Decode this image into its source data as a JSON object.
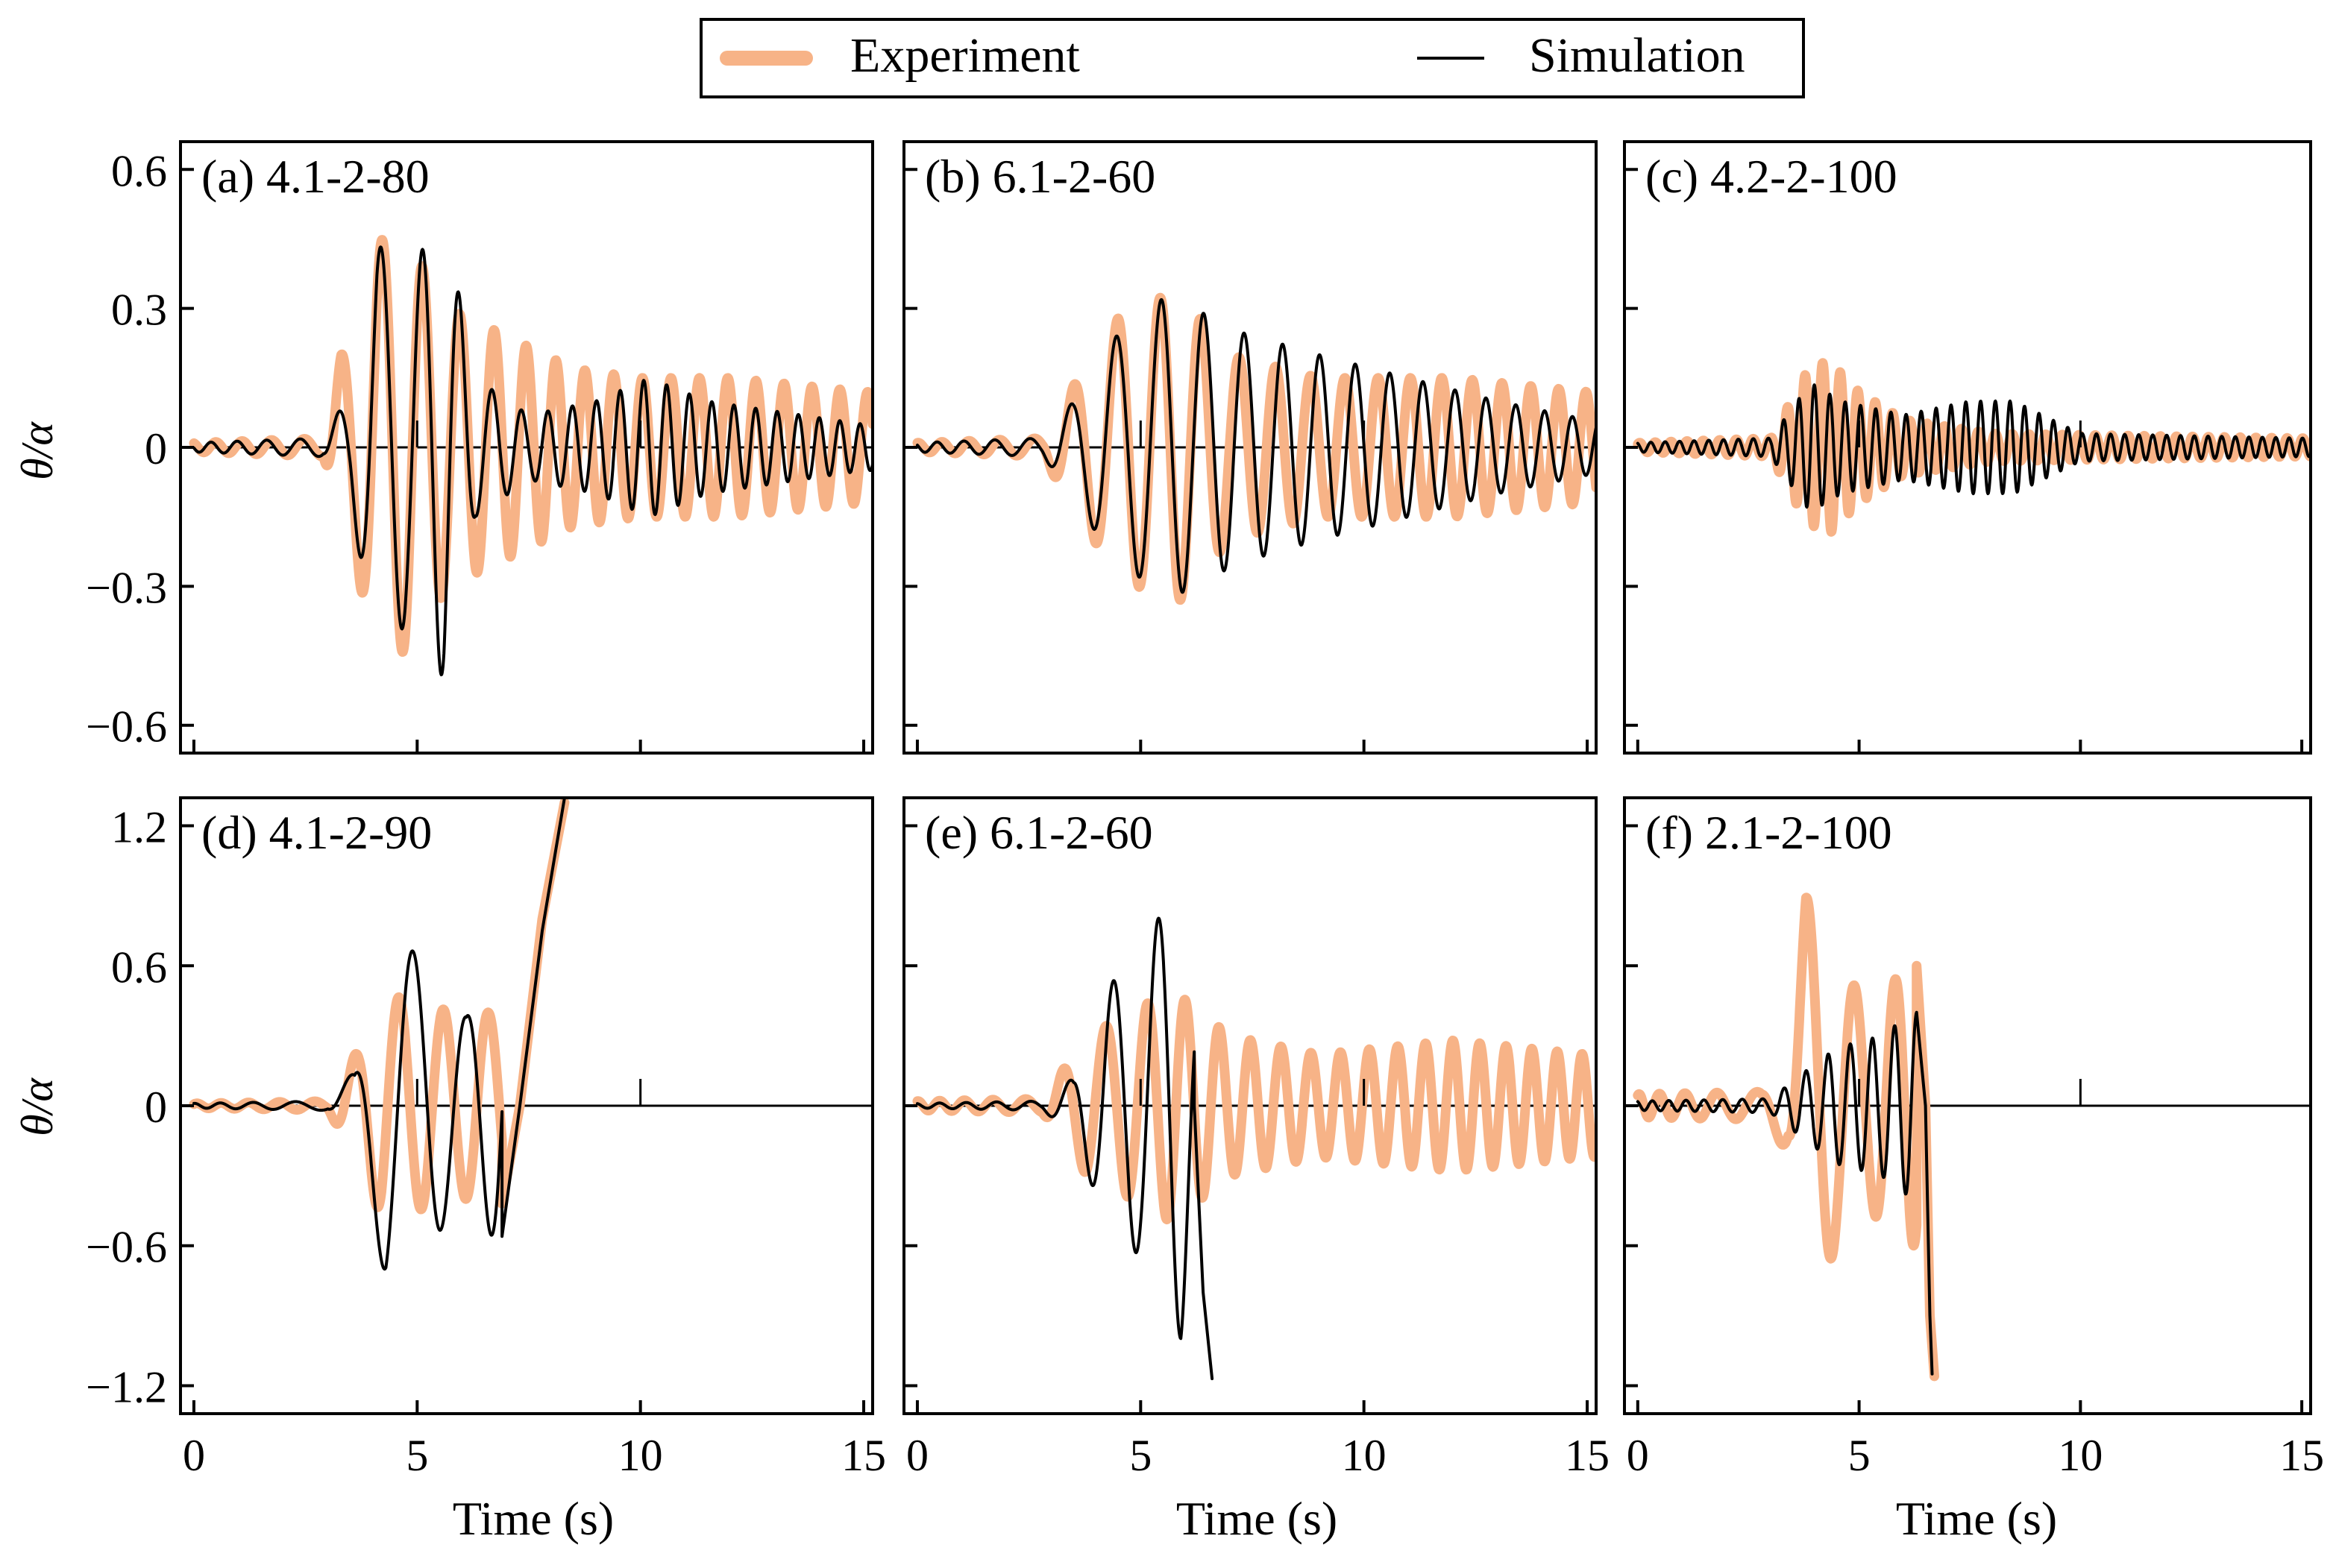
{
  "figure": {
    "legend": {
      "experiment_label": "Experiment",
      "simulation_label": "Simulation"
    },
    "ylabel": "θ/α",
    "xlabel": "Time (s)",
    "colors": {
      "experiment": "#f7b387",
      "simulation": "#000000"
    }
  },
  "chart_data": [
    {
      "type": "line",
      "title": "(a) 4.1-2-80",
      "xlim": [
        -0.3,
        15.2
      ],
      "ylim": [
        -0.66,
        0.66
      ],
      "xticks": [
        0,
        5,
        10,
        15
      ],
      "yticks": [
        -0.6,
        -0.3,
        0,
        0.3,
        0.6
      ],
      "yticklabels": [
        "−0.6",
        "−0.3",
        "0",
        "0.3",
        "0.6"
      ],
      "show_yticklabels": true,
      "show_xticklabels": false,
      "series": [
        {
          "name": "Experiment",
          "env": [
            [
              0,
              0.01
            ],
            [
              2.9,
              0.02
            ],
            [
              3.3,
              0.2
            ],
            [
              3.6,
              0.25
            ],
            [
              4.1,
              0.45
            ],
            [
              4.8,
              0.44
            ],
            [
              5.7,
              0.3
            ],
            [
              6.8,
              0.25
            ],
            [
              8.5,
              0.17
            ],
            [
              10,
              0.15
            ],
            [
              12,
              0.15
            ],
            [
              15,
              0.12
            ]
          ],
          "period": [
            [
              0,
              0.5
            ],
            [
              4,
              0.95
            ],
            [
              8,
              0.65
            ],
            [
              15,
              0.62
            ]
          ],
          "phase": 0.3,
          "end": 15.2
        },
        {
          "name": "Simulation",
          "env": [
            [
              0,
              0.01
            ],
            [
              2.9,
              0.02
            ],
            [
              3.5,
              0.12
            ],
            [
              4.1,
              0.44
            ],
            [
              4.8,
              0.38
            ],
            [
              5.6,
              0.5
            ],
            [
              6.3,
              0.15
            ],
            [
              7.5,
              0.07
            ],
            [
              9,
              0.1
            ],
            [
              10.2,
              0.15
            ],
            [
              11.5,
              0.1
            ],
            [
              15,
              0.05
            ]
          ],
          "period": [
            [
              0,
              0.5
            ],
            [
              4,
              1.0
            ],
            [
              8,
              0.55
            ],
            [
              15,
              0.45
            ]
          ],
          "phase": 0.5,
          "end": 15.2
        }
      ]
    },
    {
      "type": "line",
      "title": "(b) 6.1-2-60",
      "xlim": [
        -0.3,
        15.2
      ],
      "ylim": [
        -0.66,
        0.66
      ],
      "xticks": [
        0,
        5,
        10,
        15
      ],
      "yticks": [
        -0.6,
        -0.3,
        0,
        0.3,
        0.6
      ],
      "show_yticklabels": false,
      "show_xticklabels": false,
      "series": [
        {
          "name": "Experiment",
          "env": [
            [
              0,
              0.01
            ],
            [
              2.8,
              0.02
            ],
            [
              3.6,
              0.15
            ],
            [
              4.5,
              0.28
            ],
            [
              5.8,
              0.34
            ],
            [
              7,
              0.2
            ],
            [
              9,
              0.15
            ],
            [
              12,
              0.15
            ],
            [
              15,
              0.12
            ]
          ],
          "period": [
            [
              0,
              0.5
            ],
            [
              4,
              1.0
            ],
            [
              8,
              0.8
            ],
            [
              15,
              0.6
            ]
          ],
          "phase": 0.2,
          "end": 15.2
        },
        {
          "name": "Simulation",
          "env": [
            [
              0,
              0.01
            ],
            [
              2.8,
              0.02
            ],
            [
              3.5,
              0.1
            ],
            [
              4.2,
              0.22
            ],
            [
              5.6,
              0.33
            ],
            [
              7.2,
              0.25
            ],
            [
              9,
              0.2
            ],
            [
              11,
              0.15
            ],
            [
              13,
              0.1
            ],
            [
              15,
              0.06
            ]
          ],
          "period": [
            [
              0,
              0.5
            ],
            [
              4,
              1.05
            ],
            [
              8,
              0.85
            ],
            [
              15,
              0.6
            ]
          ],
          "phase": 0.4,
          "end": 15.2
        }
      ]
    },
    {
      "type": "line",
      "title": "(c) 4.2-2-100",
      "xlim": [
        -0.3,
        15.2
      ],
      "ylim": [
        -0.66,
        0.66
      ],
      "xticks": [
        0,
        5,
        10,
        15
      ],
      "yticks": [
        -0.6,
        -0.3,
        0,
        0.3,
        0.6
      ],
      "show_yticklabels": false,
      "show_xticklabels": false,
      "series": [
        {
          "name": "Experiment",
          "env": [
            [
              0,
              0.01
            ],
            [
              3,
              0.02
            ],
            [
              3.8,
              0.16
            ],
            [
              4.3,
              0.19
            ],
            [
              5,
              0.12
            ],
            [
              6,
              0.06
            ],
            [
              8,
              0.03
            ],
            [
              15,
              0.02
            ]
          ],
          "period": [
            [
              0,
              0.35
            ],
            [
              4,
              0.4
            ],
            [
              15,
              0.35
            ]
          ],
          "phase": 0.1,
          "end": 15.2
        },
        {
          "name": "Simulation",
          "env": [
            [
              0,
              0.01
            ],
            [
              3,
              0.02
            ],
            [
              3.9,
              0.14
            ],
            [
              4.6,
              0.1
            ],
            [
              6,
              0.07
            ],
            [
              7.5,
              0.1
            ],
            [
              8.5,
              0.1
            ],
            [
              10,
              0.03
            ],
            [
              15,
              0.02
            ]
          ],
          "period": [
            [
              0,
              0.32
            ],
            [
              4,
              0.35
            ],
            [
              15,
              0.3
            ]
          ],
          "phase": 0.3,
          "end": 15.2
        }
      ]
    },
    {
      "type": "line",
      "title": "(d) 4.1-2-90",
      "xlim": [
        -0.3,
        15.2
      ],
      "ylim": [
        -1.32,
        1.32
      ],
      "xticks": [
        0,
        5,
        10,
        15
      ],
      "yticks": [
        -1.2,
        -0.6,
        0,
        0.6,
        1.2
      ],
      "yticklabels": [
        "−1.2",
        "−0.6",
        "0",
        "0.6",
        "1.2"
      ],
      "show_yticklabels": true,
      "show_xticklabels": true,
      "series": [
        {
          "name": "Experiment",
          "env": [
            [
              0,
              0.01
            ],
            [
              3,
              0.02
            ],
            [
              3.7,
              0.25
            ],
            [
              4.2,
              0.48
            ],
            [
              5,
              0.45
            ],
            [
              5.8,
              0.4
            ],
            [
              6.8,
              0.4
            ]
          ],
          "period": [
            [
              0,
              0.5
            ],
            [
              4,
              1.0
            ],
            [
              7,
              1.0
            ]
          ],
          "phase": 0.1,
          "end": 6.9,
          "tail": [
            [
              6.9,
              -0.42
            ],
            [
              7.3,
              0.0
            ],
            [
              7.8,
              0.8
            ],
            [
              8.3,
              1.3
            ]
          ]
        },
        {
          "name": "Simulation",
          "env": [
            [
              0,
              0.01
            ],
            [
              3,
              0.02
            ],
            [
              3.6,
              0.15
            ],
            [
              4.3,
              0.75
            ],
            [
              5.2,
              0.62
            ],
            [
              6.1,
              0.38
            ],
            [
              6.8,
              0.6
            ]
          ],
          "period": [
            [
              0,
              0.5
            ],
            [
              4,
              1.5
            ],
            [
              5.5,
              1.2
            ],
            [
              7,
              1.0
            ]
          ],
          "phase": 0.2,
          "end": 6.9,
          "tail": [
            [
              6.9,
              -0.56
            ],
            [
              7.3,
              0.0
            ],
            [
              7.8,
              0.75
            ],
            [
              8.3,
              1.32
            ]
          ]
        }
      ]
    },
    {
      "type": "line",
      "title": "(e) 6.1-2-60",
      "xlim": [
        -0.3,
        15.2
      ],
      "ylim": [
        -1.32,
        1.32
      ],
      "xticks": [
        0,
        5,
        10,
        15
      ],
      "yticks": [
        -1.2,
        -0.6,
        0,
        0.6,
        1.2
      ],
      "show_yticklabels": false,
      "show_xticklabels": true,
      "series": [
        {
          "name": "Experiment",
          "env": [
            [
              0,
              0.02
            ],
            [
              2.8,
              0.03
            ],
            [
              3.8,
              0.3
            ],
            [
              4.8,
              0.4
            ],
            [
              5.7,
              0.5
            ],
            [
              7,
              0.3
            ],
            [
              9,
              0.22
            ],
            [
              12,
              0.28
            ],
            [
              15,
              0.22
            ]
          ],
          "period": [
            [
              0,
              0.45
            ],
            [
              4,
              1.0
            ],
            [
              7,
              0.7
            ],
            [
              15,
              0.55
            ]
          ],
          "phase": 0.2,
          "end": 15.2
        },
        {
          "name": "Simulation",
          "env": [
            [
              0,
              0.01
            ],
            [
              2.8,
              0.02
            ],
            [
              3.5,
              0.12
            ],
            [
              4.2,
              0.5
            ],
            [
              5,
              0.65
            ],
            [
              5.9,
              1.0
            ],
            [
              6.3,
              0.5
            ]
          ],
          "period": [
            [
              0,
              0.5
            ],
            [
              4,
              1.0
            ],
            [
              6.3,
              1.0
            ]
          ],
          "phase": 0.3,
          "end": 6.2,
          "tail": [
            [
              6.2,
              0.0
            ],
            [
              6.4,
              -0.8
            ],
            [
              6.6,
              -1.17
            ]
          ]
        }
      ]
    },
    {
      "type": "line",
      "title": "(f) 2.1-2-100",
      "xlim": [
        -0.3,
        15.2
      ],
      "ylim": [
        -1.32,
        1.32
      ],
      "xticks": [
        0,
        5,
        10,
        15
      ],
      "yticks": [
        -1.2,
        -0.6,
        0,
        0.6,
        1.2
      ],
      "show_yticklabels": false,
      "show_xticklabels": true,
      "series": [
        {
          "name": "Experiment",
          "env": [
            [
              0,
              0.05
            ],
            [
              2.8,
              0.06
            ],
            [
              3.4,
              0.2
            ],
            [
              3.8,
              0.9
            ],
            [
              4.5,
              0.6
            ],
            [
              5.2,
              0.45
            ],
            [
              6.2,
              0.6
            ]
          ],
          "period": [
            [
              0,
              0.4
            ],
            [
              3.5,
              1.2
            ],
            [
              6.2,
              0.8
            ]
          ],
          "phase": 0.15,
          "end": 6.3,
          "tail": [
            [
              6.3,
              0.6
            ],
            [
              6.5,
              0.0
            ],
            [
              6.6,
              -0.9
            ],
            [
              6.7,
              -1.16
            ]
          ]
        },
        {
          "name": "Simulation",
          "env": [
            [
              0,
              0.02
            ],
            [
              3,
              0.03
            ],
            [
              3.8,
              0.15
            ],
            [
              4.5,
              0.25
            ],
            [
              5.5,
              0.3
            ],
            [
              6.2,
              0.4
            ]
          ],
          "period": [
            [
              0,
              0.35
            ],
            [
              3.5,
              0.5
            ],
            [
              6.2,
              0.5
            ]
          ],
          "phase": 0.3,
          "end": 6.3,
          "tail": [
            [
              6.3,
              0.4
            ],
            [
              6.5,
              0.0
            ],
            [
              6.6,
              -0.9
            ],
            [
              6.65,
              -1.15
            ]
          ]
        }
      ]
    }
  ]
}
